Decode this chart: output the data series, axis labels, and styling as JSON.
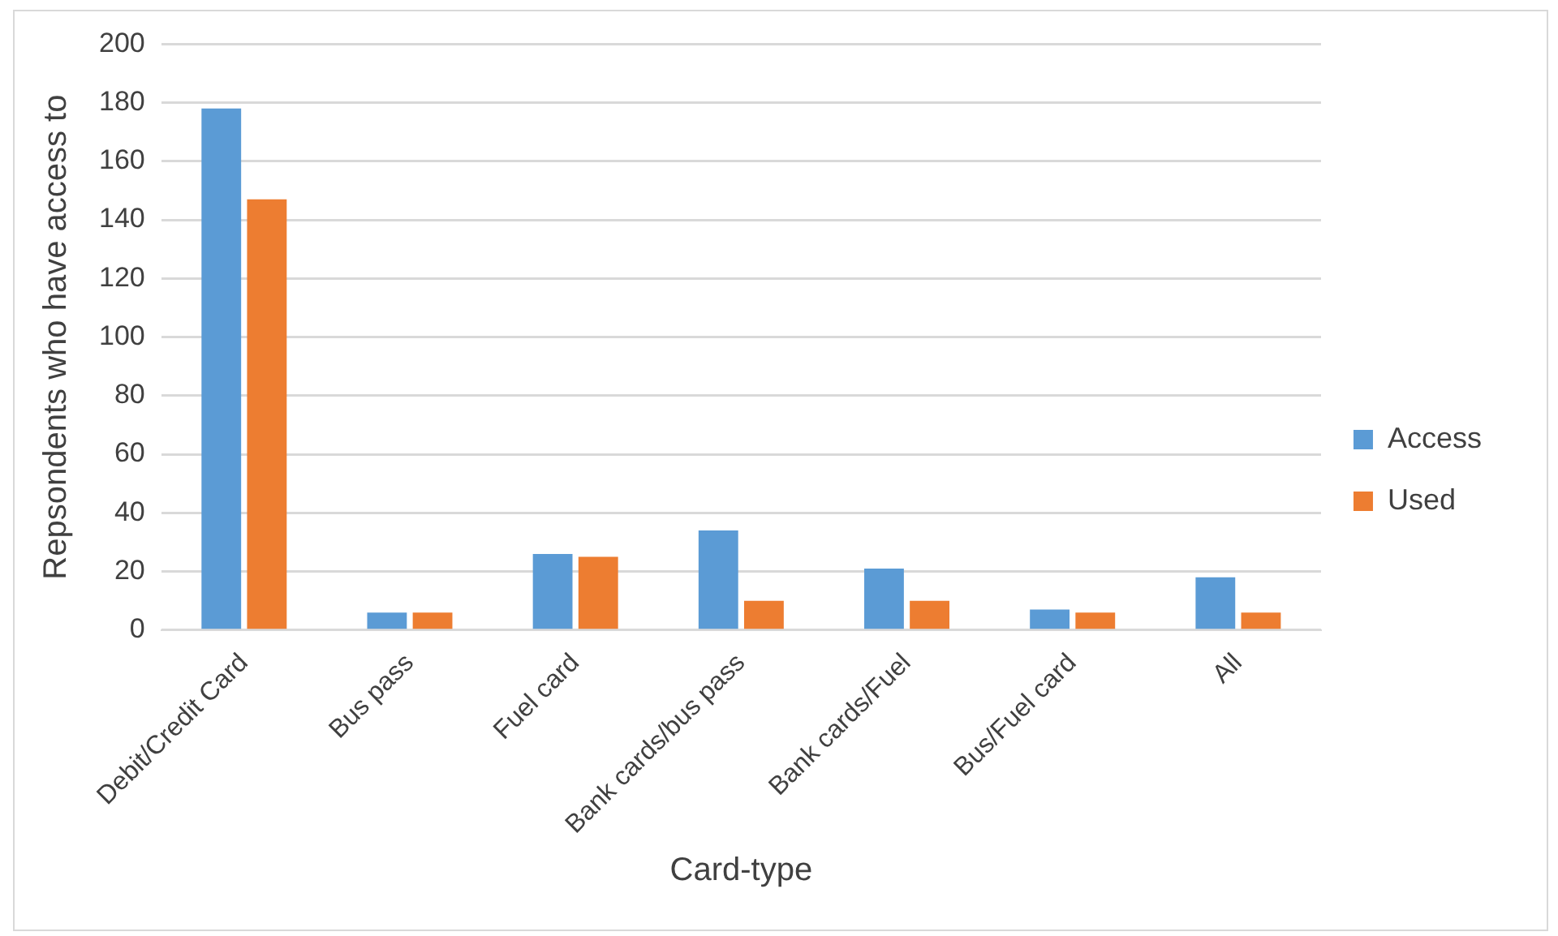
{
  "chart_data": {
    "type": "bar",
    "xlabel": "Card-type",
    "ylabel": "Repsondents who have access to",
    "categories": [
      "Debit/Credit Card",
      "Bus pass",
      "Fuel card",
      "Bank cards/bus pass",
      "Bank cards/Fuel",
      "Bus/Fuel card",
      "All"
    ],
    "series": [
      {
        "name": "Access",
        "color": "#5b9bd5",
        "values": [
          178,
          6,
          26,
          34,
          21,
          7,
          18
        ]
      },
      {
        "name": "Used",
        "color": "#ed7d31",
        "values": [
          147,
          6,
          25,
          10,
          10,
          6,
          6
        ]
      }
    ],
    "ylim": [
      0,
      200
    ],
    "yticks": [
      0,
      20,
      40,
      60,
      80,
      100,
      120,
      140,
      160,
      180,
      200
    ],
    "grid": "y",
    "legend": "right"
  }
}
